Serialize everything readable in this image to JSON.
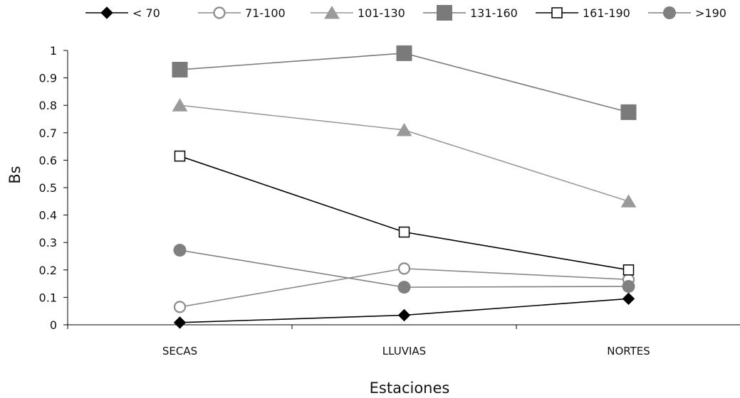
{
  "chart_data": {
    "type": "line",
    "title": "",
    "xlabel": "Estaciones",
    "ylabel": "Bs",
    "categories": [
      "SECAS",
      "LLUVIAS",
      "NORTES"
    ],
    "ylim": [
      0,
      1
    ],
    "yticks": [
      0,
      0.1,
      0.2,
      0.3,
      0.4,
      0.5,
      0.6,
      0.7,
      0.8,
      0.9,
      1
    ],
    "ytick_labels": [
      "0",
      "0.1",
      "0.2",
      "0.3",
      "0.4",
      "0.5",
      "0.6",
      "0.7",
      "0.8",
      "0.9",
      "1"
    ],
    "grid": false,
    "legend_position": "top",
    "series": [
      {
        "name": "< 70",
        "values": [
          0.008,
          0.035,
          0.095
        ],
        "color": "#000000",
        "marker": "diamond-filled"
      },
      {
        "name": "71-100",
        "values": [
          0.065,
          0.205,
          0.165
        ],
        "color": "#8a8a8a",
        "marker": "circle-open"
      },
      {
        "name": "101-130",
        "values": [
          0.8,
          0.71,
          0.45
        ],
        "color": "#9a9a9a",
        "marker": "triangle-filled"
      },
      {
        "name": "131-160",
        "values": [
          0.93,
          0.99,
          0.775
        ],
        "color": "#7a7a7a",
        "marker": "square-filled"
      },
      {
        "name": "161-190",
        "values": [
          0.615,
          0.338,
          0.2
        ],
        "color": "#000000",
        "marker": "square-open"
      },
      {
        "name": ">190",
        "values": [
          0.272,
          0.137,
          0.14
        ],
        "color": "#808080",
        "marker": "circle-filled"
      }
    ]
  }
}
